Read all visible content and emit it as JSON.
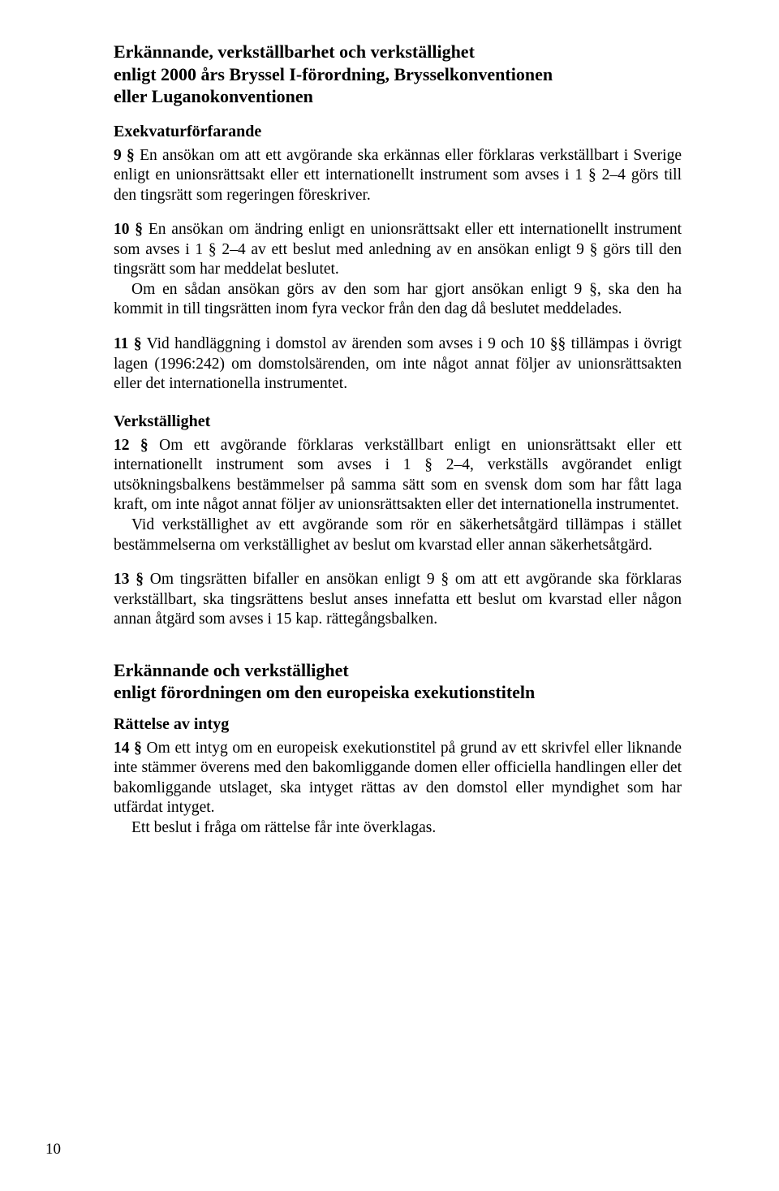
{
  "sectionA": {
    "title_line1": "Erkännande, verkställbarhet och verkställighet",
    "title_line2": "enligt 2000 års Bryssel I-förordning, Brysselkonventionen",
    "title_line3": "eller Luganokonventionen",
    "sub1_title": "Exekvaturförfarande",
    "p9_lead": "9 §",
    "p9_text": " En ansökan om att ett avgörande ska erkännas eller förklaras verkställbart i Sverige enligt en unionsrättsakt eller ett internationellt instrument som avses i 1 § 2–4 görs till den tingsrätt som regeringen föreskriver.",
    "p10_lead": "10 §",
    "p10_text": " En ansökan om ändring enligt en unionsrättsakt eller ett internationellt instrument som avses i 1 § 2–4 av ett beslut med anledning av en ansökan enligt 9 § görs till den tingsrätt som har meddelat beslutet.",
    "p10_cont": "Om en sådan ansökan görs av den som har gjort ansökan enligt 9 §, ska den ha kommit in till tingsrätten inom fyra veckor från den dag då beslutet meddelades.",
    "p11_lead": "11 §",
    "p11_text": " Vid handläggning i domstol av ärenden som avses i 9 och 10 §§ tillämpas i övrigt lagen (1996:242) om domstolsärenden, om inte något annat följer av unionsrättsakten eller det internationella instrumentet.",
    "sub2_title": "Verkställighet",
    "p12_lead": "12 §",
    "p12_text": " Om ett avgörande förklaras verkställbart enligt en unionsrättsakt eller ett internationellt instrument som avses i 1 § 2–4, verkställs avgörandet enligt utsökningsbalkens bestämmelser på samma sätt som en svensk dom som har fått laga kraft, om inte något annat följer av unionsrättsakten eller det internationella instrumentet.",
    "p12_cont": "Vid verkställighet av ett avgörande som rör en säkerhetsåtgärd tillämpas i stället bestämmelserna om verkställighet av beslut om kvarstad eller annan säkerhetsåtgärd.",
    "p13_lead": "13 §",
    "p13_text": " Om tingsrätten bifaller en ansökan enligt 9 § om att ett avgörande ska förklaras verkställbart, ska tingsrättens beslut anses innefatta ett beslut om kvarstad eller någon annan åtgärd som avses i 15 kap. rättegångsbalken."
  },
  "sectionB": {
    "title_line1": "Erkännande och verkställighet",
    "title_line2": "enligt förordningen om den europeiska exekutionstiteln",
    "sub1_title": "Rättelse av intyg",
    "p14_lead": "14 §",
    "p14_text": " Om ett intyg om en europeisk exekutionstitel på grund av ett skrivfel eller liknande inte stämmer överens med den bakomliggande domen eller officiella handlingen eller det bakomliggande utslaget, ska intyget rättas av den domstol eller myndighet som har utfärdat intyget.",
    "p14_cont": "Ett beslut i fråga om rättelse får inte överklagas."
  },
  "page_number": "10"
}
